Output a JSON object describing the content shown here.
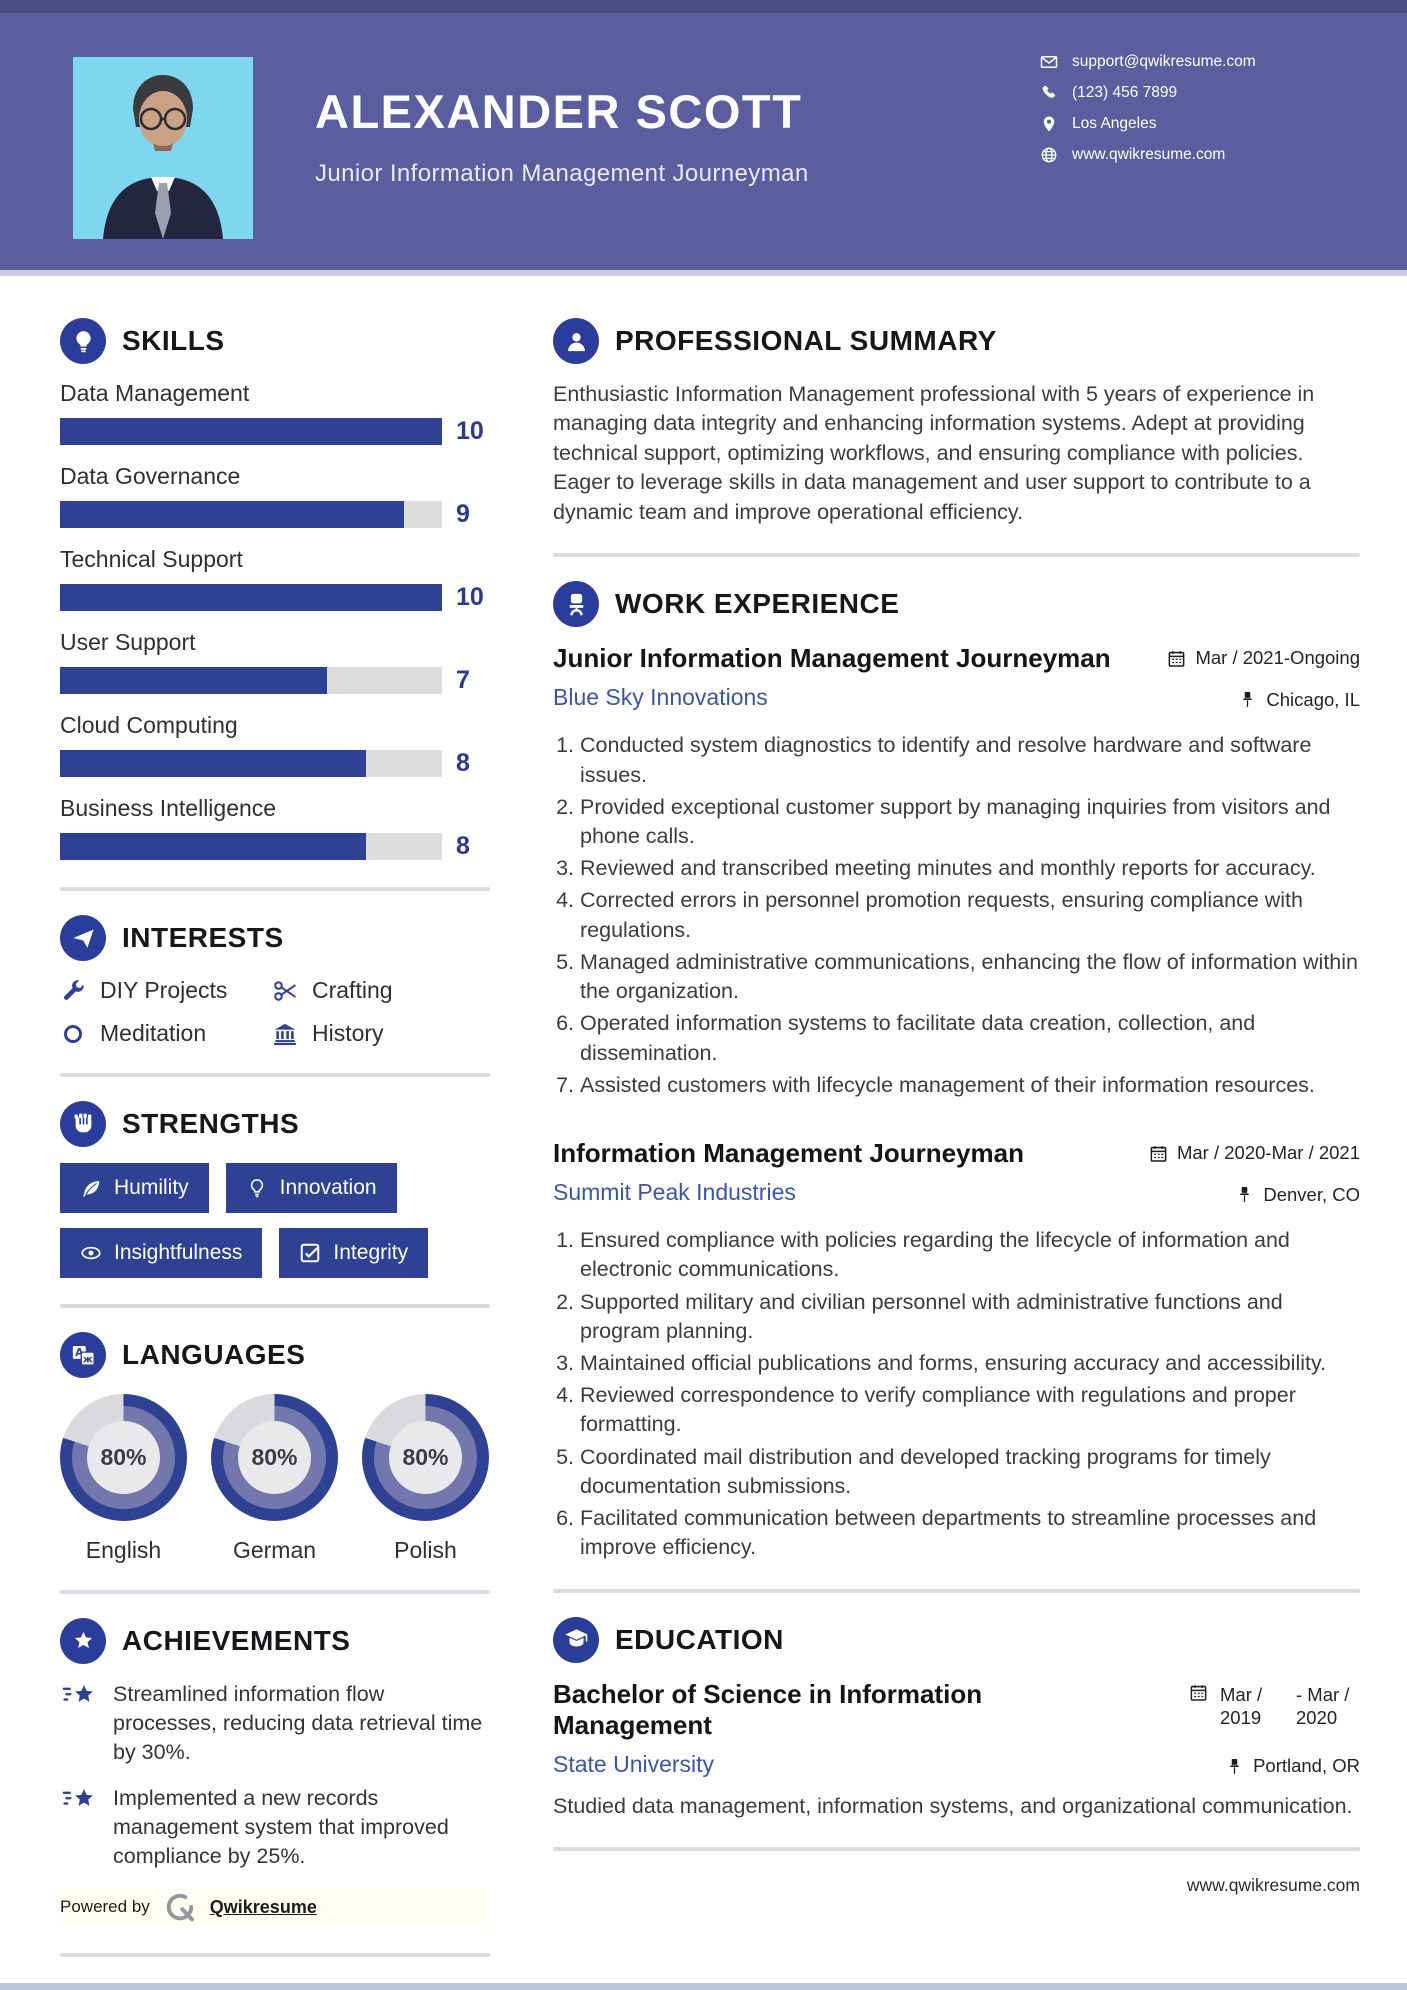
{
  "header": {
    "name": "ALEXANDER SCOTT",
    "title": "Junior Information Management Journeyman",
    "contact": [
      {
        "icon": "envelope-icon",
        "text": "support@qwikresume.com"
      },
      {
        "icon": "phone-icon",
        "text": "(123) 456 7899"
      },
      {
        "icon": "location-pin-icon",
        "text": "Los Angeles"
      },
      {
        "icon": "globe-icon",
        "text": "www.qwikresume.com"
      }
    ]
  },
  "skills": {
    "title": "SKILLS",
    "max": 10,
    "items": [
      {
        "label": "Data Management",
        "value": 10,
        "value_label": "10"
      },
      {
        "label": "Data Governance",
        "value": 9,
        "value_label": "9"
      },
      {
        "label": "Technical Support",
        "value": 10,
        "value_label": "10"
      },
      {
        "label": "User Support",
        "value": 7,
        "value_label": "7"
      },
      {
        "label": "Cloud Computing",
        "value": 8,
        "value_label": "8"
      },
      {
        "label": "Business Intelligence",
        "value": 8,
        "value_label": "8"
      }
    ]
  },
  "interests": {
    "title": "INTERESTS",
    "items": [
      {
        "icon": "wrench-icon",
        "label": "DIY Projects"
      },
      {
        "icon": "scissors-icon",
        "label": "Crafting"
      },
      {
        "icon": "ring-icon",
        "label": "Meditation"
      },
      {
        "icon": "museum-icon",
        "label": "History"
      }
    ]
  },
  "strengths": {
    "title": "STRENGTHS",
    "items": [
      {
        "icon": "leaf-icon",
        "label": "Humility"
      },
      {
        "icon": "bulb-icon",
        "label": "Innovation"
      },
      {
        "icon": "eye-icon",
        "label": "Insightfulness"
      },
      {
        "icon": "checkbox-icon",
        "label": "Integrity"
      }
    ]
  },
  "languages": {
    "title": "LANGUAGES",
    "items": [
      {
        "label": "English",
        "percent": 80,
        "percent_label": "80%"
      },
      {
        "label": "German",
        "percent": 80,
        "percent_label": "80%"
      },
      {
        "label": "Polish",
        "percent": 80,
        "percent_label": "80%"
      }
    ]
  },
  "achievements": {
    "title": "ACHIEVEMENTS",
    "items": [
      "Streamlined information flow processes, reducing data retrieval time by 30%.",
      "Implemented a new records management system that improved compliance by 25%."
    ]
  },
  "powered_by": {
    "label": "Powered by",
    "brand": "Qwikresume"
  },
  "summary": {
    "title": "PROFESSIONAL SUMMARY",
    "text": "Enthusiastic Information Management professional with 5 years of experience in managing data integrity and enhancing information systems. Adept at providing technical support, optimizing workflows, and ensuring compliance with policies. Eager to leverage skills in data management and user support to contribute to a dynamic team and improve operational efficiency."
  },
  "work": {
    "title": "WORK EXPERIENCE",
    "jobs": [
      {
        "role": "Junior Information Management Journeyman",
        "company": "Blue Sky Innovations",
        "dates": "Mar / 2021-Ongoing",
        "location": "Chicago, IL",
        "bullets": [
          "Conducted system diagnostics to identify and resolve hardware and software issues.",
          "Provided exceptional customer support by managing inquiries from visitors and phone calls.",
          "Reviewed and transcribed meeting minutes and monthly reports for accuracy.",
          "Corrected errors in personnel promotion requests, ensuring compliance with regulations.",
          "Managed administrative communications, enhancing the flow of information within the organization.",
          "Operated information systems to facilitate data creation, collection, and dissemination.",
          "Assisted customers with lifecycle management of their information resources."
        ]
      },
      {
        "role": "Information Management Journeyman",
        "company": "Summit Peak Industries",
        "dates": "Mar / 2020-Mar / 2021",
        "location": "Denver, CO",
        "bullets": [
          "Ensured compliance with policies regarding the lifecycle of information and electronic communications.",
          "Supported military and civilian personnel with administrative functions and program planning.",
          "Maintained official publications and forms, ensuring accuracy and accessibility.",
          "Reviewed correspondence to verify compliance with regulations and proper formatting.",
          "Coordinated mail distribution and developed tracking programs for timely documentation submissions.",
          "Facilitated communication between departments to streamline processes and improve efficiency."
        ]
      }
    ]
  },
  "education": {
    "title": "EDUCATION",
    "degree": "Bachelor of Science in Information Management",
    "date_start": "Mar / 2019",
    "date_end": "- Mar / 2020",
    "school": "State University",
    "location": "Portland, OR",
    "description": "Studied data management, information systems, and organizational communication."
  },
  "footer": {
    "website": "www.qwikresume.com"
  },
  "colors": {
    "header_purple": "#5b5e9e",
    "accent_blue": "#2e4193",
    "icon_circle_blue": "#2b3d9b",
    "link_blue": "#3c55a5",
    "photo_background": "#7fd7ef",
    "bar_track_gray": "#dcdcdc",
    "donut_inner_ring": "#7477ae",
    "donut_track": "#d9d9de"
  }
}
